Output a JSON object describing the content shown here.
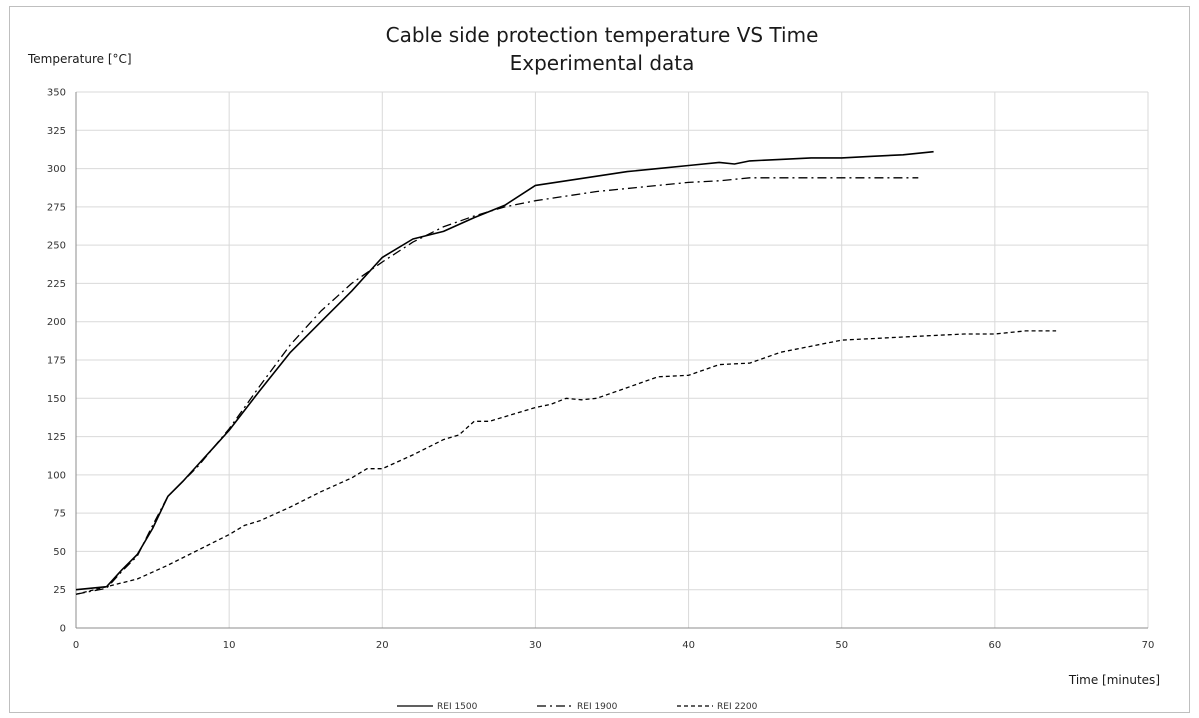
{
  "chart_data": {
    "type": "line",
    "title": "Cable side protection temperature VS Time",
    "subtitle": "Experimental data",
    "ylabel": "Temperature [°C]",
    "xlabel": "Time  [minutes]",
    "xlim": [
      0,
      70
    ],
    "ylim": [
      0,
      350
    ],
    "xticks": [
      0,
      10,
      20,
      30,
      40,
      50,
      60,
      70
    ],
    "yticks": [
      0,
      25,
      50,
      75,
      100,
      125,
      150,
      175,
      200,
      225,
      250,
      275,
      300,
      325,
      350
    ],
    "grid": true,
    "legend_position": "bottom-center",
    "series": [
      {
        "name": "REI 1500",
        "dash": "solid",
        "color": "#000000",
        "x": [
          0,
          2,
          3,
          4,
          5,
          6,
          7,
          8,
          9,
          10,
          12,
          14,
          16,
          18,
          20,
          22,
          24,
          26,
          28,
          30,
          32,
          34,
          36,
          38,
          40,
          42,
          43,
          44,
          46,
          48,
          50,
          52,
          54,
          56
        ],
        "y": [
          25,
          27,
          38,
          48,
          65,
          86,
          96,
          107,
          118,
          129,
          155,
          180,
          200,
          220,
          242,
          254,
          259,
          268,
          276,
          289,
          292,
          295,
          298,
          300,
          302,
          304,
          303,
          305,
          306,
          307,
          307,
          308,
          309,
          311
        ]
      },
      {
        "name": "REI 1900",
        "dash": "dashdot",
        "color": "#000000",
        "x": [
          0,
          2,
          3,
          4,
          5,
          6,
          7,
          8,
          9,
          10,
          12,
          14,
          16,
          18,
          20,
          22,
          24,
          26,
          28,
          30,
          32,
          34,
          36,
          38,
          40,
          42,
          44,
          46,
          48,
          50,
          52,
          55
        ],
        "y": [
          22,
          26,
          37,
          47,
          67,
          86,
          96,
          106,
          118,
          130,
          158,
          185,
          207,
          225,
          239,
          252,
          262,
          269,
          275,
          279,
          282,
          285,
          287,
          289,
          291,
          292,
          294,
          294,
          294,
          294,
          294,
          294
        ]
      },
      {
        "name": "REI 2200",
        "dash": "dashed",
        "color": "#000000",
        "x": [
          0,
          2,
          4,
          6,
          8,
          10,
          11,
          12,
          14,
          16,
          18,
          19,
          20,
          22,
          24,
          25,
          26,
          27,
          28,
          30,
          31,
          32,
          33,
          34,
          36,
          38,
          40,
          42,
          44,
          46,
          48,
          50,
          52,
          54,
          56,
          58,
          60,
          62,
          64
        ],
        "y": [
          22,
          27,
          32,
          41,
          51,
          61,
          67,
          70,
          79,
          89,
          98,
          104,
          104,
          113,
          123,
          126,
          135,
          135,
          138,
          144,
          146,
          150,
          149,
          150,
          157,
          164,
          165,
          172,
          173,
          180,
          184,
          188,
          189,
          190,
          191,
          192,
          192,
          194,
          194
        ]
      }
    ]
  }
}
